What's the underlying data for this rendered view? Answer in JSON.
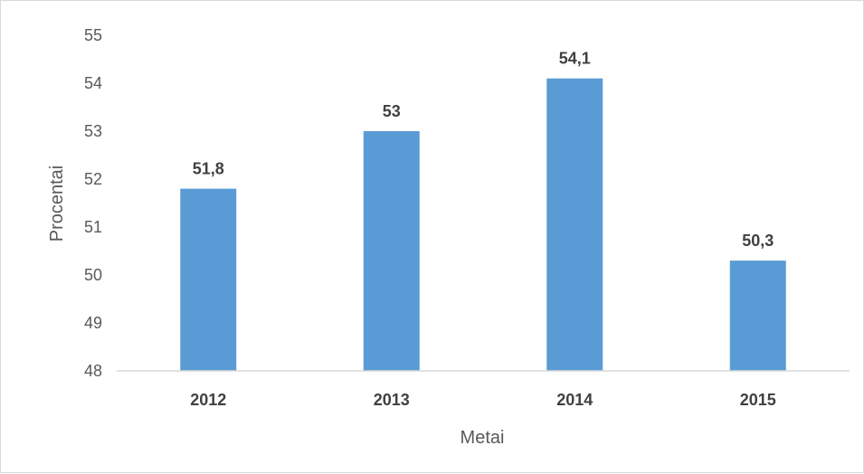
{
  "chart_data": {
    "type": "bar",
    "categories": [
      "2012",
      "2013",
      "2014",
      "2015"
    ],
    "values": [
      51.8,
      53,
      54.1,
      50.3
    ],
    "data_labels": [
      "51,8",
      "53",
      "54,1",
      "50,3"
    ],
    "xlabel": "Metai",
    "ylabel": "Procentai",
    "ylim": [
      48,
      55
    ],
    "yticks": [
      "48",
      "49",
      "50",
      "51",
      "52",
      "53",
      "54",
      "55"
    ],
    "grid": false,
    "bar_color": "#5b9bd5",
    "axis_color": "#d9d9d9"
  }
}
